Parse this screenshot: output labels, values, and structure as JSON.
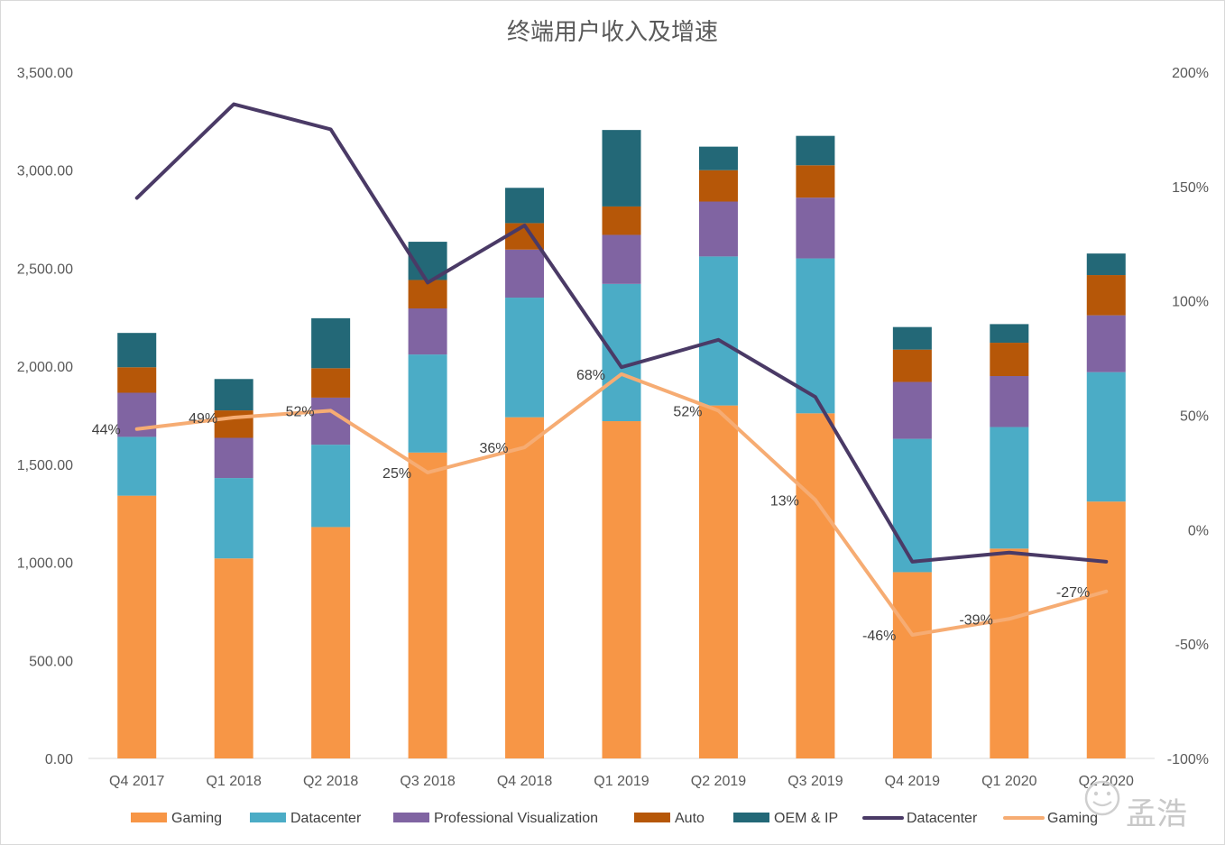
{
  "chart_data": {
    "type": "bar",
    "stacked": true,
    "title": "终端用户收入及增速",
    "categories": [
      "Q4 2017",
      "Q1 2018",
      "Q2 2018",
      "Q3 2018",
      "Q4 2018",
      "Q1 2019",
      "Q2 2019",
      "Q3 2019",
      "Q4 2019",
      "Q1 2020",
      "Q2 2020"
    ],
    "y_left": {
      "min": 0,
      "max": 3500,
      "ticks": [
        "0.00",
        "500.00",
        "1,000.00",
        "1,500.00",
        "2,000.00",
        "2,500.00",
        "3,000.00",
        "3,500.00"
      ],
      "tick_values": [
        0,
        500,
        1000,
        1500,
        2000,
        2500,
        3000,
        3500
      ]
    },
    "y_right": {
      "min": -100,
      "max": 200,
      "ticks": [
        "-100%",
        "-50%",
        "0%",
        "50%",
        "100%",
        "150%",
        "200%"
      ],
      "tick_values": [
        -100,
        -50,
        0,
        50,
        100,
        150,
        200
      ]
    },
    "series": [
      {
        "name": "Gaming",
        "kind": "bar",
        "color": "#F79646",
        "values": [
          1340,
          1020,
          1180,
          1560,
          1740,
          1720,
          1800,
          1760,
          950,
          1070,
          1310
        ]
      },
      {
        "name": "Datacenter",
        "kind": "bar",
        "color": "#4BACC6",
        "values": [
          300,
          410,
          420,
          500,
          610,
          700,
          760,
          790,
          680,
          620,
          660
        ]
      },
      {
        "name": "Professional Visualization",
        "kind": "bar",
        "color": "#8064A2",
        "values": [
          225,
          205,
          240,
          235,
          245,
          250,
          280,
          310,
          290,
          260,
          290
        ]
      },
      {
        "name": "Auto",
        "kind": "bar",
        "color": "#B65708",
        "values": [
          130,
          140,
          150,
          145,
          135,
          145,
          160,
          165,
          165,
          170,
          205
        ]
      },
      {
        "name": "OEM & IP",
        "kind": "bar",
        "color": "#236877",
        "values": [
          175,
          160,
          255,
          195,
          180,
          390,
          120,
          150,
          115,
          95,
          110
        ]
      },
      {
        "name": "Datacenter",
        "kind": "line",
        "axis": "right",
        "color": "#4A3A66",
        "values": [
          145,
          186,
          175,
          108,
          133,
          71,
          83,
          58,
          -14,
          -10,
          -14
        ]
      },
      {
        "name": "Gaming",
        "kind": "line",
        "axis": "right",
        "color": "#F6AC73",
        "values": [
          44,
          49,
          52,
          25,
          36,
          68,
          52,
          13,
          -46,
          -39,
          -27
        ],
        "labels": [
          "44%",
          "49%",
          "52%",
          "25%",
          "36%",
          "68%",
          "52%",
          "13%",
          "-46%",
          "-39%",
          "-27%"
        ]
      }
    ],
    "legend": [
      "Gaming",
      "Datacenter",
      "Professional Visualization",
      "Auto",
      "OEM & IP",
      "Datacenter",
      "Gaming"
    ],
    "legend_position": "bottom",
    "grid": false
  },
  "watermark": {
    "text": "孟浩",
    "icon": "smiley-badge-icon"
  }
}
